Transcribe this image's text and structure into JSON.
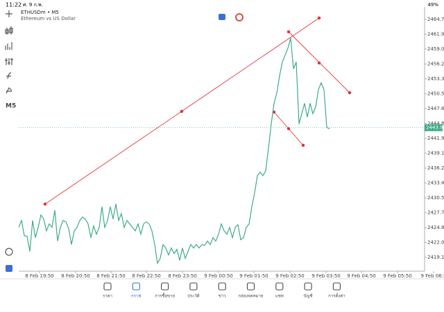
{
  "status_bar": {
    "time": "11:22",
    "date": "ศ. 9 ก.พ.",
    "battery": "49%"
  },
  "toolbar": {
    "timeframe": "M5"
  },
  "chart_data": {
    "type": "line",
    "title": "ETHUSDm • M5",
    "subtitle": "Ethereum vs US Dollar",
    "color": "#3daa8a",
    "values": [
      2424.9,
      2426.22,
      2423.32,
      2423.19,
      2420.29,
      2426.22,
      2422.92,
      2424.9,
      2427.28,
      2426.49,
      2424.24,
      2425.56,
      2424.9,
      2428.2,
      2422.27,
      2424.9,
      2426.22,
      2425.96,
      2424.64,
      2421.61,
      2424.24,
      2424.9,
      2426.22,
      2426.88,
      2426.49,
      2425.56,
      2422.92,
      2425.17,
      2423.58,
      2424.9,
      2428.86,
      2424.9,
      2426.22,
      2428.86,
      2426.49,
      2429.39,
      2426.22,
      2427.54,
      2424.9,
      2426.22,
      2425.56,
      2424.9,
      2424.24,
      2425.56,
      2423.58,
      2425.56,
      2425.96,
      2425.56,
      2424.24,
      2421.61,
      2418.04,
      2418.97,
      2421.61,
      2420.95,
      2419.63,
      2420.95,
      2419.89,
      2420.68,
      2418.57,
      2420.95,
      2418.97,
      2420.29,
      2421.61,
      2420.95,
      2421.61,
      2420.95,
      2421.61,
      2421.47,
      2422.27,
      2421.61,
      2422.92,
      2422.27,
      2423.58,
      2425.56,
      2424.24,
      2423.58,
      2424.9,
      2422.92,
      2424.9,
      2425.43,
      2422.53,
      2422.92,
      2424.9,
      2425.56,
      2428.86,
      2431.5,
      2434.8,
      2435.46,
      2434.8,
      2435.72,
      2440.08,
      2444.7,
      2448.65,
      2450.63,
      2453.93,
      2456.57,
      2457.89,
      2459.21,
      2461.19,
      2455.25,
      2456.57,
      2444.7,
      2446.67,
      2448.65,
      2446.01,
      2448.65,
      2446.67,
      2447.99,
      2451.29,
      2452.61,
      2451.29,
      2444.04,
      2443.77
    ],
    "xlim": [
      0,
      146.25
    ],
    "xticks": [
      {
        "value": 7.5,
        "label": "8 Feb 19:50"
      },
      {
        "value": 20.5,
        "label": "8 Feb 20:50"
      },
      {
        "value": 33.25,
        "label": "8 Feb 21:50"
      },
      {
        "value": 46,
        "label": "8 Feb 22:50"
      },
      {
        "value": 59,
        "label": "8 Feb 23:50"
      },
      {
        "value": 72,
        "label": "9 Feb 00:50"
      },
      {
        "value": 84.75,
        "label": "9 Feb 01:50"
      },
      {
        "value": 97.75,
        "label": "9 Feb 02:50"
      },
      {
        "value": 110.75,
        "label": "9 Feb 03:50"
      },
      {
        "value": 123.5,
        "label": "9 Feb 04:50"
      },
      {
        "value": 136.5,
        "label": "9 Feb 05:50"
      },
      {
        "value": 149.5,
        "label": "9 Feb 06:5"
      }
    ],
    "ylim": [
      2416.51,
      2467.12
    ],
    "yticks": [
      {
        "value": 2464.75,
        "label": "2464.75"
      },
      {
        "value": 2461.9,
        "label": "2461.90"
      },
      {
        "value": 2459.05,
        "label": "2459.05"
      },
      {
        "value": 2456.2,
        "label": "2456.20"
      },
      {
        "value": 2453.35,
        "label": "2453.35"
      },
      {
        "value": 2450.5,
        "label": "2450.50"
      },
      2447.65,
      {
        "value": 2444.8,
        "label": "2444.80"
      },
      2441.95,
      {
        "value": 2439.1,
        "label": "2439.10"
      },
      2436.25,
      {
        "value": 2433.4,
        "label": "2433.40"
      },
      2430.55,
      {
        "value": 2427.7,
        "label": "2427.70"
      },
      2424.85,
      {
        "value": 2422,
        "label": "2422.00"
      },
      2419.15
    ],
    "current_price": 2443.99
  },
  "nav": {
    "items": [
      "ราคา",
      "กราฟ",
      "การซื้อขาย",
      "ประวัติ",
      "ข่าว",
      "กล่องจดหมาย",
      "แชท",
      "บัญชี",
      "การตั้งค่า"
    ],
    "active": 1
  }
}
